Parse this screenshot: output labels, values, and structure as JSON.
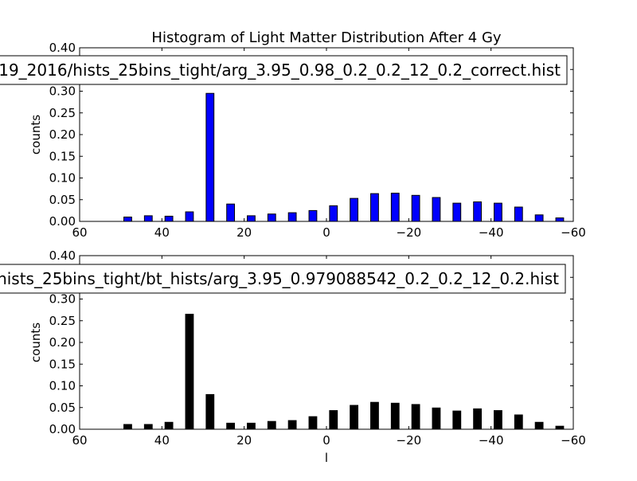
{
  "chart_data": [
    {
      "type": "bar",
      "title": "Histogram of Light Matter Distribution After 4 Gy",
      "legend": "19_2016/hists_25bins_tight/arg_3.95_0.98_0.2_0.2_12_0.2_correct.hist",
      "legend_placement": "top-center",
      "xlabel": "",
      "ylabel": "counts",
      "xlim": [
        60,
        -60
      ],
      "ylim": [
        0,
        0.4
      ],
      "xticks": [
        60,
        40,
        20,
        0,
        -20,
        -40,
        -60
      ],
      "xtick_labels": [
        "60",
        "40",
        "20",
        "0",
        "−20",
        "−40",
        "−60"
      ],
      "yticks": [
        0.0,
        0.05,
        0.1,
        0.15,
        0.2,
        0.25,
        0.3,
        0.35,
        0.4
      ],
      "ytick_labels": [
        "0.00",
        "0.05",
        "0.10",
        "0.15",
        "0.20",
        "0.25",
        "0.30",
        "0.35",
        "0.40"
      ],
      "color": "#0000ff",
      "bar_width": 1.9,
      "x": [
        48.3,
        43.3,
        38.3,
        33.3,
        28.3,
        23.3,
        18.3,
        13.3,
        8.3,
        3.3,
        -1.7,
        -6.7,
        -11.7,
        -16.7,
        -21.7,
        -26.7,
        -31.7,
        -36.7,
        -41.7,
        -46.7,
        -51.7,
        -56.7
      ],
      "values": [
        0.01,
        0.013,
        0.012,
        0.022,
        0.295,
        0.04,
        0.013,
        0.017,
        0.02,
        0.025,
        0.036,
        0.053,
        0.064,
        0.065,
        0.06,
        0.055,
        0.042,
        0.045,
        0.042,
        0.033,
        0.015,
        0.008
      ]
    },
    {
      "type": "bar",
      "title": "",
      "legend": "hists_25bins_tight/bt_hists/arg_3.95_0.979088542_0.2_0.2_12_0.2.hist",
      "legend_placement": "top-center",
      "xlabel": "l",
      "ylabel": "counts",
      "xlim": [
        60,
        -60
      ],
      "ylim": [
        0,
        0.4
      ],
      "xticks": [
        60,
        40,
        20,
        0,
        -20,
        -40,
        -60
      ],
      "xtick_labels": [
        "60",
        "40",
        "20",
        "0",
        "−20",
        "−40",
        "−60"
      ],
      "yticks": [
        0.0,
        0.05,
        0.1,
        0.15,
        0.2,
        0.25,
        0.3,
        0.35,
        0.4
      ],
      "ytick_labels": [
        "0.00",
        "0.05",
        "0.10",
        "0.15",
        "0.20",
        "0.25",
        "0.30",
        "0.35",
        "0.40"
      ],
      "color": "#000000",
      "bar_width": 1.9,
      "x": [
        48.3,
        43.3,
        38.3,
        33.3,
        28.3,
        23.3,
        18.3,
        13.3,
        8.3,
        3.3,
        -1.7,
        -6.7,
        -11.7,
        -16.7,
        -21.7,
        -26.7,
        -31.7,
        -36.7,
        -41.7,
        -46.7,
        -51.7,
        -56.7
      ],
      "values": [
        0.011,
        0.011,
        0.016,
        0.265,
        0.08,
        0.014,
        0.014,
        0.018,
        0.02,
        0.029,
        0.043,
        0.055,
        0.062,
        0.06,
        0.057,
        0.049,
        0.042,
        0.047,
        0.043,
        0.033,
        0.016,
        0.007
      ]
    }
  ]
}
